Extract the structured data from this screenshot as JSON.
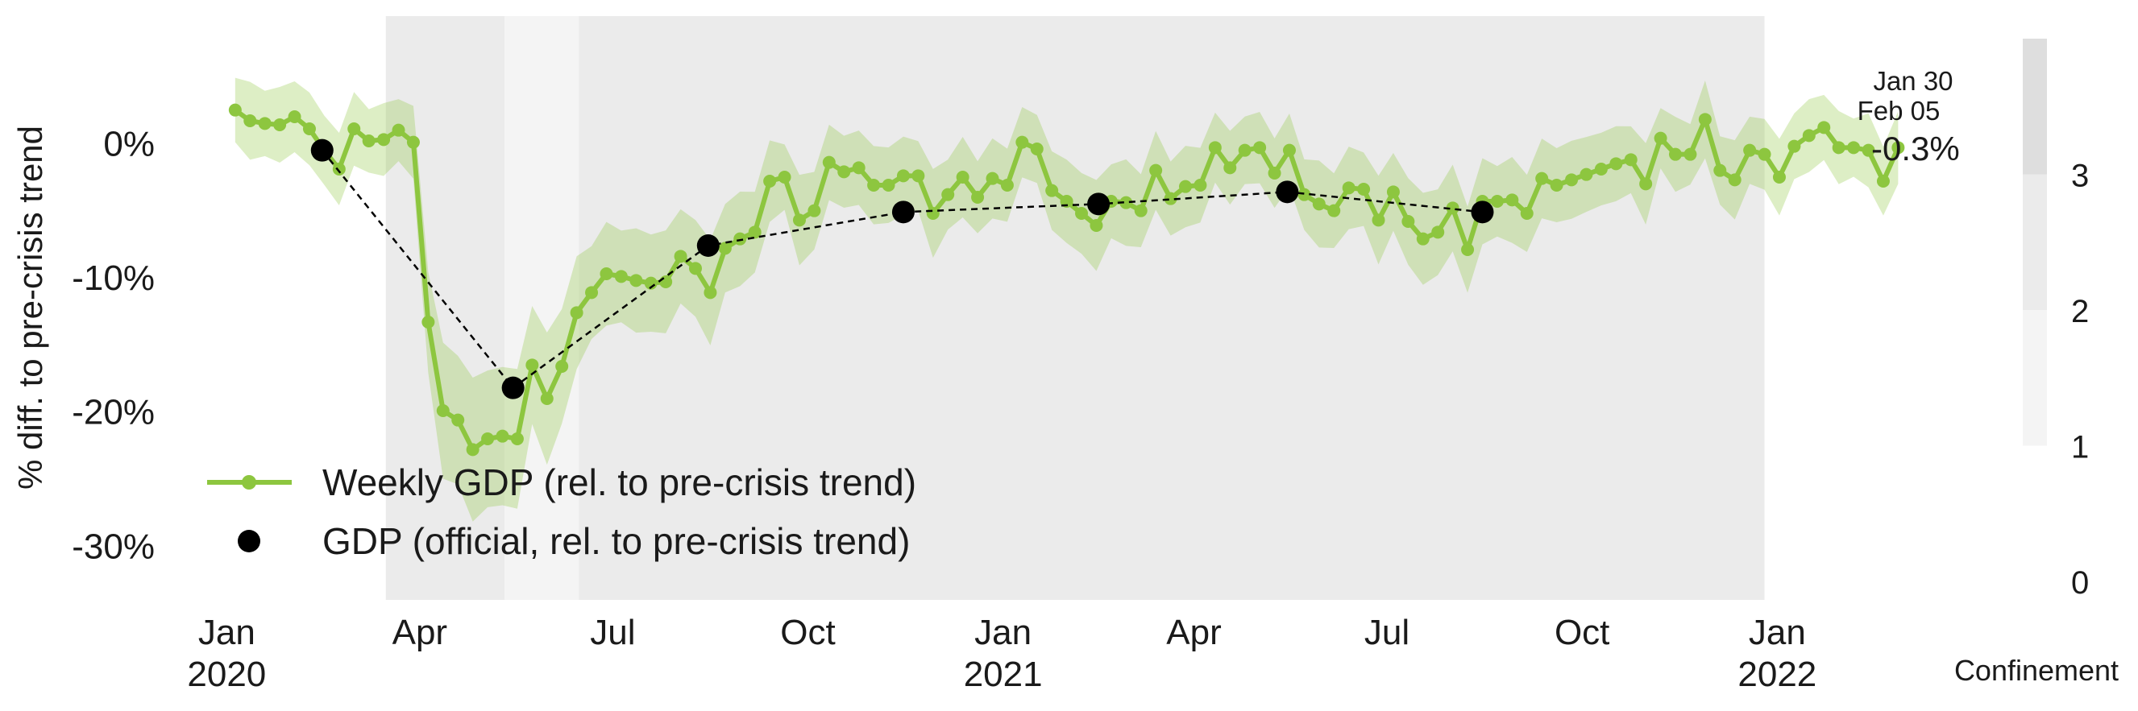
{
  "chart_data": {
    "type": "line",
    "ylabel": "% diff. to pre-crisis trend",
    "y_ticks": [
      {
        "value": 0,
        "label": "0%"
      },
      {
        "value": -10,
        "label": "-10%"
      },
      {
        "value": -20,
        "label": "-20%"
      },
      {
        "value": -30,
        "label": "-30%"
      }
    ],
    "ylim": [
      -34,
      9.5
    ],
    "xlim": [
      "2019-12-22",
      "2022-02-28"
    ],
    "x_ticks": [
      {
        "date": "2020-01-01",
        "line1": "Jan",
        "line2": "2020"
      },
      {
        "date": "2020-04-01",
        "line1": "Apr",
        "line2": ""
      },
      {
        "date": "2020-07-01",
        "line1": "Jul",
        "line2": ""
      },
      {
        "date": "2020-10-01",
        "line1": "Oct",
        "line2": ""
      },
      {
        "date": "2021-01-01",
        "line1": "Jan",
        "line2": "2021"
      },
      {
        "date": "2021-04-01",
        "line1": "Apr",
        "line2": ""
      },
      {
        "date": "2021-07-01",
        "line1": "Jul",
        "line2": ""
      },
      {
        "date": "2021-10-01",
        "line1": "Oct",
        "line2": ""
      },
      {
        "date": "2022-01-01",
        "line1": "Jan",
        "line2": "2022"
      }
    ],
    "confinement_periods": [
      {
        "start": "2020-03-16",
        "end": "2020-05-11",
        "level": 2
      },
      {
        "start": "2020-05-11",
        "end": "2020-06-15",
        "level": 1
      },
      {
        "start": "2020-06-15",
        "end": "2021-12-26",
        "level": 2
      }
    ],
    "series": [
      {
        "name": "Weekly GDP (rel. to pre-crisis trend)",
        "color": "#8dc63f",
        "band_color": "#8dc63f",
        "start_date": "2020-01-05",
        "interval_days": 7,
        "values": [
          2.5,
          1.7,
          1.5,
          1.4,
          2.0,
          1.1,
          -0.5,
          -1.9,
          1.1,
          0.2,
          0.3,
          1.0,
          0.1,
          -13.3,
          -19.9,
          -20.6,
          -22.8,
          -22.0,
          -21.8,
          -22.0,
          -16.5,
          -19.0,
          -16.6,
          -12.6,
          -11.1,
          -9.7,
          -9.9,
          -10.2,
          -10.4,
          -10.3,
          -8.4,
          -9.3,
          -11.1,
          -7.8,
          -7.1,
          -6.6,
          -2.8,
          -2.5,
          -5.7,
          -5.0,
          -1.4,
          -2.1,
          -1.8,
          -3.1,
          -3.1,
          -2.4,
          -2.4,
          -5.2,
          -3.8,
          -2.5,
          -4.0,
          -2.6,
          -3.1,
          0.1,
          -0.4,
          -3.5,
          -4.3,
          -5.2,
          -6.1,
          -4.3,
          -4.4,
          -5.0,
          -2.0,
          -4.1,
          -3.2,
          -3.1,
          -0.3,
          -1.8,
          -0.5,
          -0.3,
          -2.2,
          -0.5,
          -3.8,
          -4.5,
          -5.0,
          -3.3,
          -3.4,
          -5.7,
          -3.6,
          -5.8,
          -7.1,
          -6.6,
          -4.8,
          -7.9,
          -4.3,
          -4.3,
          -4.2,
          -5.2,
          -2.6,
          -3.1,
          -2.7,
          -2.3,
          -1.9,
          -1.5,
          -1.2,
          -3.0,
          0.4,
          -0.8,
          -0.8,
          1.8,
          -2.0,
          -2.7,
          -0.5,
          -0.8,
          -2.5,
          -0.2,
          0.6,
          1.2,
          -0.3,
          -0.3,
          -0.5,
          -2.8,
          -0.3
        ]
      },
      {
        "name": "GDP (official, rel. to pre-crisis trend)",
        "color": "#000000",
        "style": "dashed",
        "dates": [
          "2020-02-15",
          "2020-05-15",
          "2020-08-15",
          "2020-11-15",
          "2021-02-15",
          "2021-05-15",
          "2021-08-15"
        ],
        "values": [
          -0.5,
          -18.2,
          -7.6,
          -5.1,
          -4.5,
          -3.6,
          -5.1
        ]
      }
    ],
    "annotations": {
      "date_line1": "Jan 30",
      "date_line2": "Feb 05",
      "last_value": "-0.3%"
    },
    "colorbar": {
      "title": "Confinement",
      "ticks": [
        {
          "value": 0,
          "label": "0"
        },
        {
          "value": 1,
          "label": "1"
        },
        {
          "value": 2,
          "label": "2"
        },
        {
          "value": 3,
          "label": "3"
        }
      ],
      "segments": [
        {
          "from": 1,
          "to": 2,
          "color": "#f4f4f4"
        },
        {
          "from": 2,
          "to": 3,
          "color": "#ebebeb"
        },
        {
          "from": 3,
          "to": 4,
          "color": "#dedede"
        }
      ]
    },
    "legend": {
      "position": "bottom-left",
      "entries": [
        "Weekly GDP (rel. to pre-crisis trend)",
        "GDP (official, rel. to pre-crisis trend)"
      ]
    },
    "level_colors": {
      "1": "#f4f4f4",
      "2": "#ebebeb",
      "3": "#dedede"
    }
  }
}
